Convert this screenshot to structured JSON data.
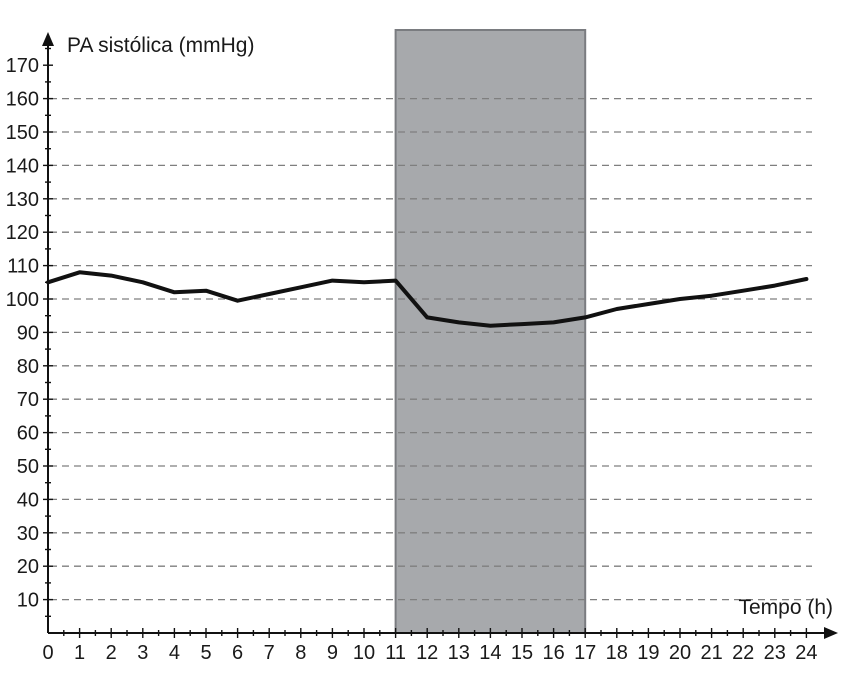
{
  "chart_data": {
    "type": "line",
    "xlabel": "Tempo (h)",
    "ylabel": "PA sistólica (mmHg)",
    "xlim": [
      0,
      24
    ],
    "ylim": [
      0,
      170
    ],
    "x_ticks": [
      0,
      1,
      2,
      3,
      4,
      5,
      6,
      7,
      8,
      9,
      10,
      11,
      12,
      13,
      14,
      15,
      16,
      17,
      18,
      19,
      20,
      21,
      22,
      23,
      24
    ],
    "y_ticks": [
      10,
      20,
      30,
      40,
      50,
      60,
      70,
      80,
      90,
      100,
      110,
      120,
      130,
      140,
      150,
      160,
      170
    ],
    "x_tick_labels": [
      "0",
      "1",
      "2",
      "3",
      "4",
      "5",
      "6",
      "7",
      "8",
      "9",
      "10",
      "11",
      "12",
      "13",
      "14",
      "15",
      "16",
      "17",
      "18",
      "19",
      "20",
      "21",
      "22",
      "23",
      "24"
    ],
    "y_tick_labels": [
      "10",
      "20",
      "30",
      "40",
      "50",
      "60",
      "70",
      "80",
      "90",
      "100",
      "110",
      "120",
      "130",
      "140",
      "150",
      "160",
      "170"
    ],
    "grid": true,
    "grid_style": "dashed-horizontal",
    "shaded_region": {
      "x_start": 11,
      "x_end": 17,
      "color": "#a7a9ac",
      "edge_color": "#7a7c80"
    },
    "series": [
      {
        "color": "#111111",
        "x": [
          0,
          1,
          2,
          3,
          4,
          5,
          6,
          7,
          8,
          9,
          10,
          11,
          12,
          13,
          14,
          15,
          16,
          17,
          18,
          19,
          20,
          21,
          22,
          23,
          24
        ],
        "y": [
          105,
          108,
          107,
          105,
          102,
          102.5,
          99.5,
          101.5,
          103.5,
          105.5,
          105,
          105.5,
          94.5,
          93,
          92,
          92.5,
          93,
          94.5,
          97,
          98.5,
          100,
          101,
          102.5,
          104,
          106
        ]
      }
    ]
  }
}
